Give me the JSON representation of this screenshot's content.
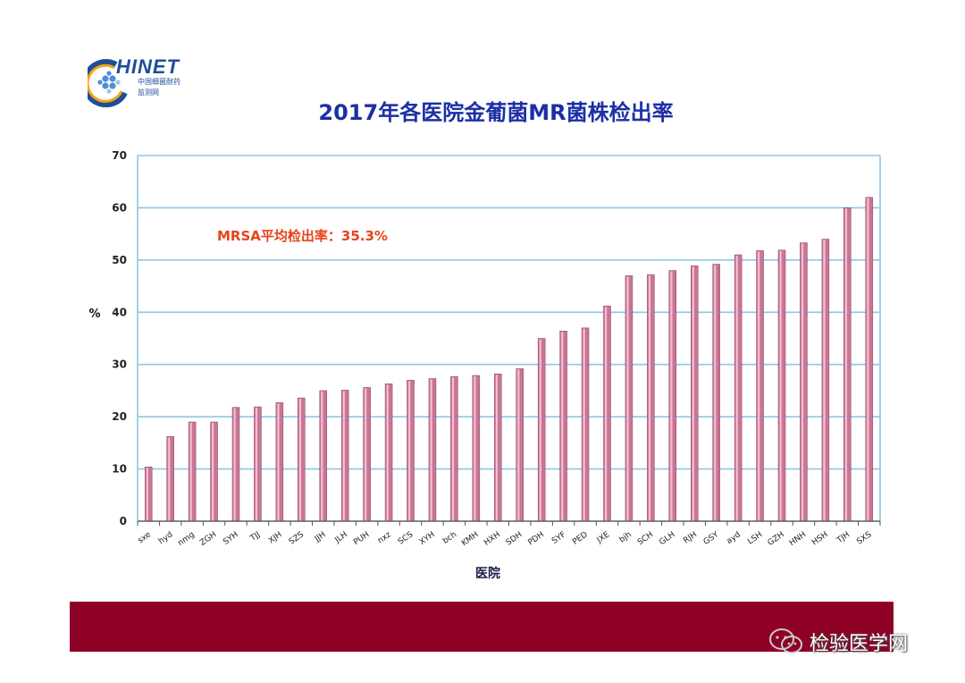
{
  "logo": {
    "name": "HINET",
    "sub1": "中国细菌耐药",
    "sub2": "监测网"
  },
  "watermark": {
    "text": "检验医学网",
    "icon": "wechat-icon"
  },
  "chart_data": {
    "type": "bar",
    "title": "2017年各医院金葡菌MR菌株检出率",
    "xlabel": "医院",
    "ylabel": "%",
    "ylim": [
      0,
      70
    ],
    "yticks": [
      0,
      10,
      20,
      30,
      40,
      50,
      60,
      70
    ],
    "grid": true,
    "annotation": "MRSA平均检出率：35.3%",
    "colors": {
      "bar": "#c97593",
      "bar_highlight": "#f2bfd0",
      "grid": "#8ec6e8",
      "annotation": "#e8431c",
      "title": "#1c2fa6",
      "footer": "#8f0027"
    },
    "categories": [
      "sxe",
      "hyd",
      "nmg",
      "ZGH",
      "SYH",
      "TJJ",
      "XJH",
      "SZS",
      "JJH",
      "JLH",
      "PUH",
      "nxz",
      "SCS",
      "XYH",
      "bch",
      "KMH",
      "HXH",
      "SDH",
      "PDH",
      "SYF",
      "PED",
      "JXE",
      "bjh",
      "SCH",
      "GLH",
      "RJH",
      "GSY",
      "ayd",
      "LSH",
      "GZH",
      "HNH",
      "HSH",
      "TJH",
      "SXS"
    ],
    "values": [
      10.4,
      16.2,
      19.0,
      19.0,
      21.8,
      21.9,
      22.7,
      23.6,
      25.0,
      25.1,
      25.6,
      26.3,
      27.0,
      27.3,
      27.7,
      27.9,
      28.2,
      29.2,
      35.0,
      36.4,
      37.0,
      41.2,
      47.0,
      47.2,
      48.0,
      48.9,
      49.2,
      51.0,
      51.8,
      51.9,
      53.3,
      54.0,
      60.0,
      62.0
    ]
  }
}
